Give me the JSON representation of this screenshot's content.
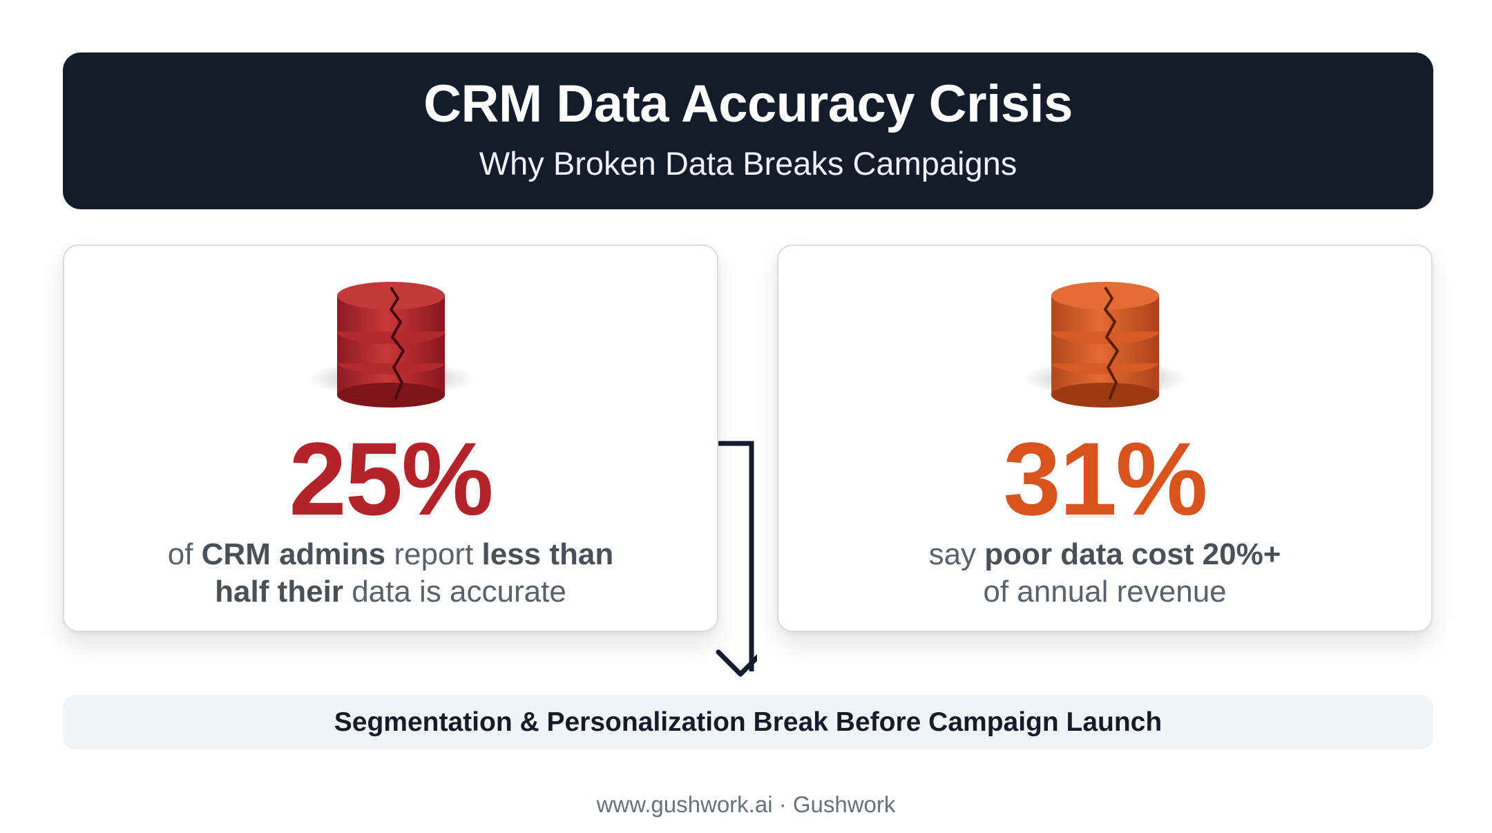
{
  "header": {
    "title": "CRM Data Accuracy Crisis",
    "subtitle": "Why Broken Data Breaks Campaigns"
  },
  "cards": [
    {
      "icon": "cracked-database-icon",
      "icon_color": "#b5232a",
      "stat": "25%",
      "stat_color": "#b5232a",
      "desc": {
        "l1a": "of ",
        "l1b": "CRM admins",
        "l1c": " report ",
        "l1d": "less than",
        "l2a": "half their",
        "l2b": " data is accurate"
      }
    },
    {
      "icon": "cracked-database-icon",
      "icon_color": "#d9531e",
      "stat": "31%",
      "stat_color": "#d9531e",
      "desc": {
        "l1a": "say ",
        "l1b": "poor data cost 20%+",
        "l2a": "of annual revenue"
      }
    }
  ],
  "banner": {
    "text": "Segmentation & Personalization Break Before Campaign Launch"
  },
  "footer": {
    "text": "www.gushwork.ai · Gushwork"
  }
}
